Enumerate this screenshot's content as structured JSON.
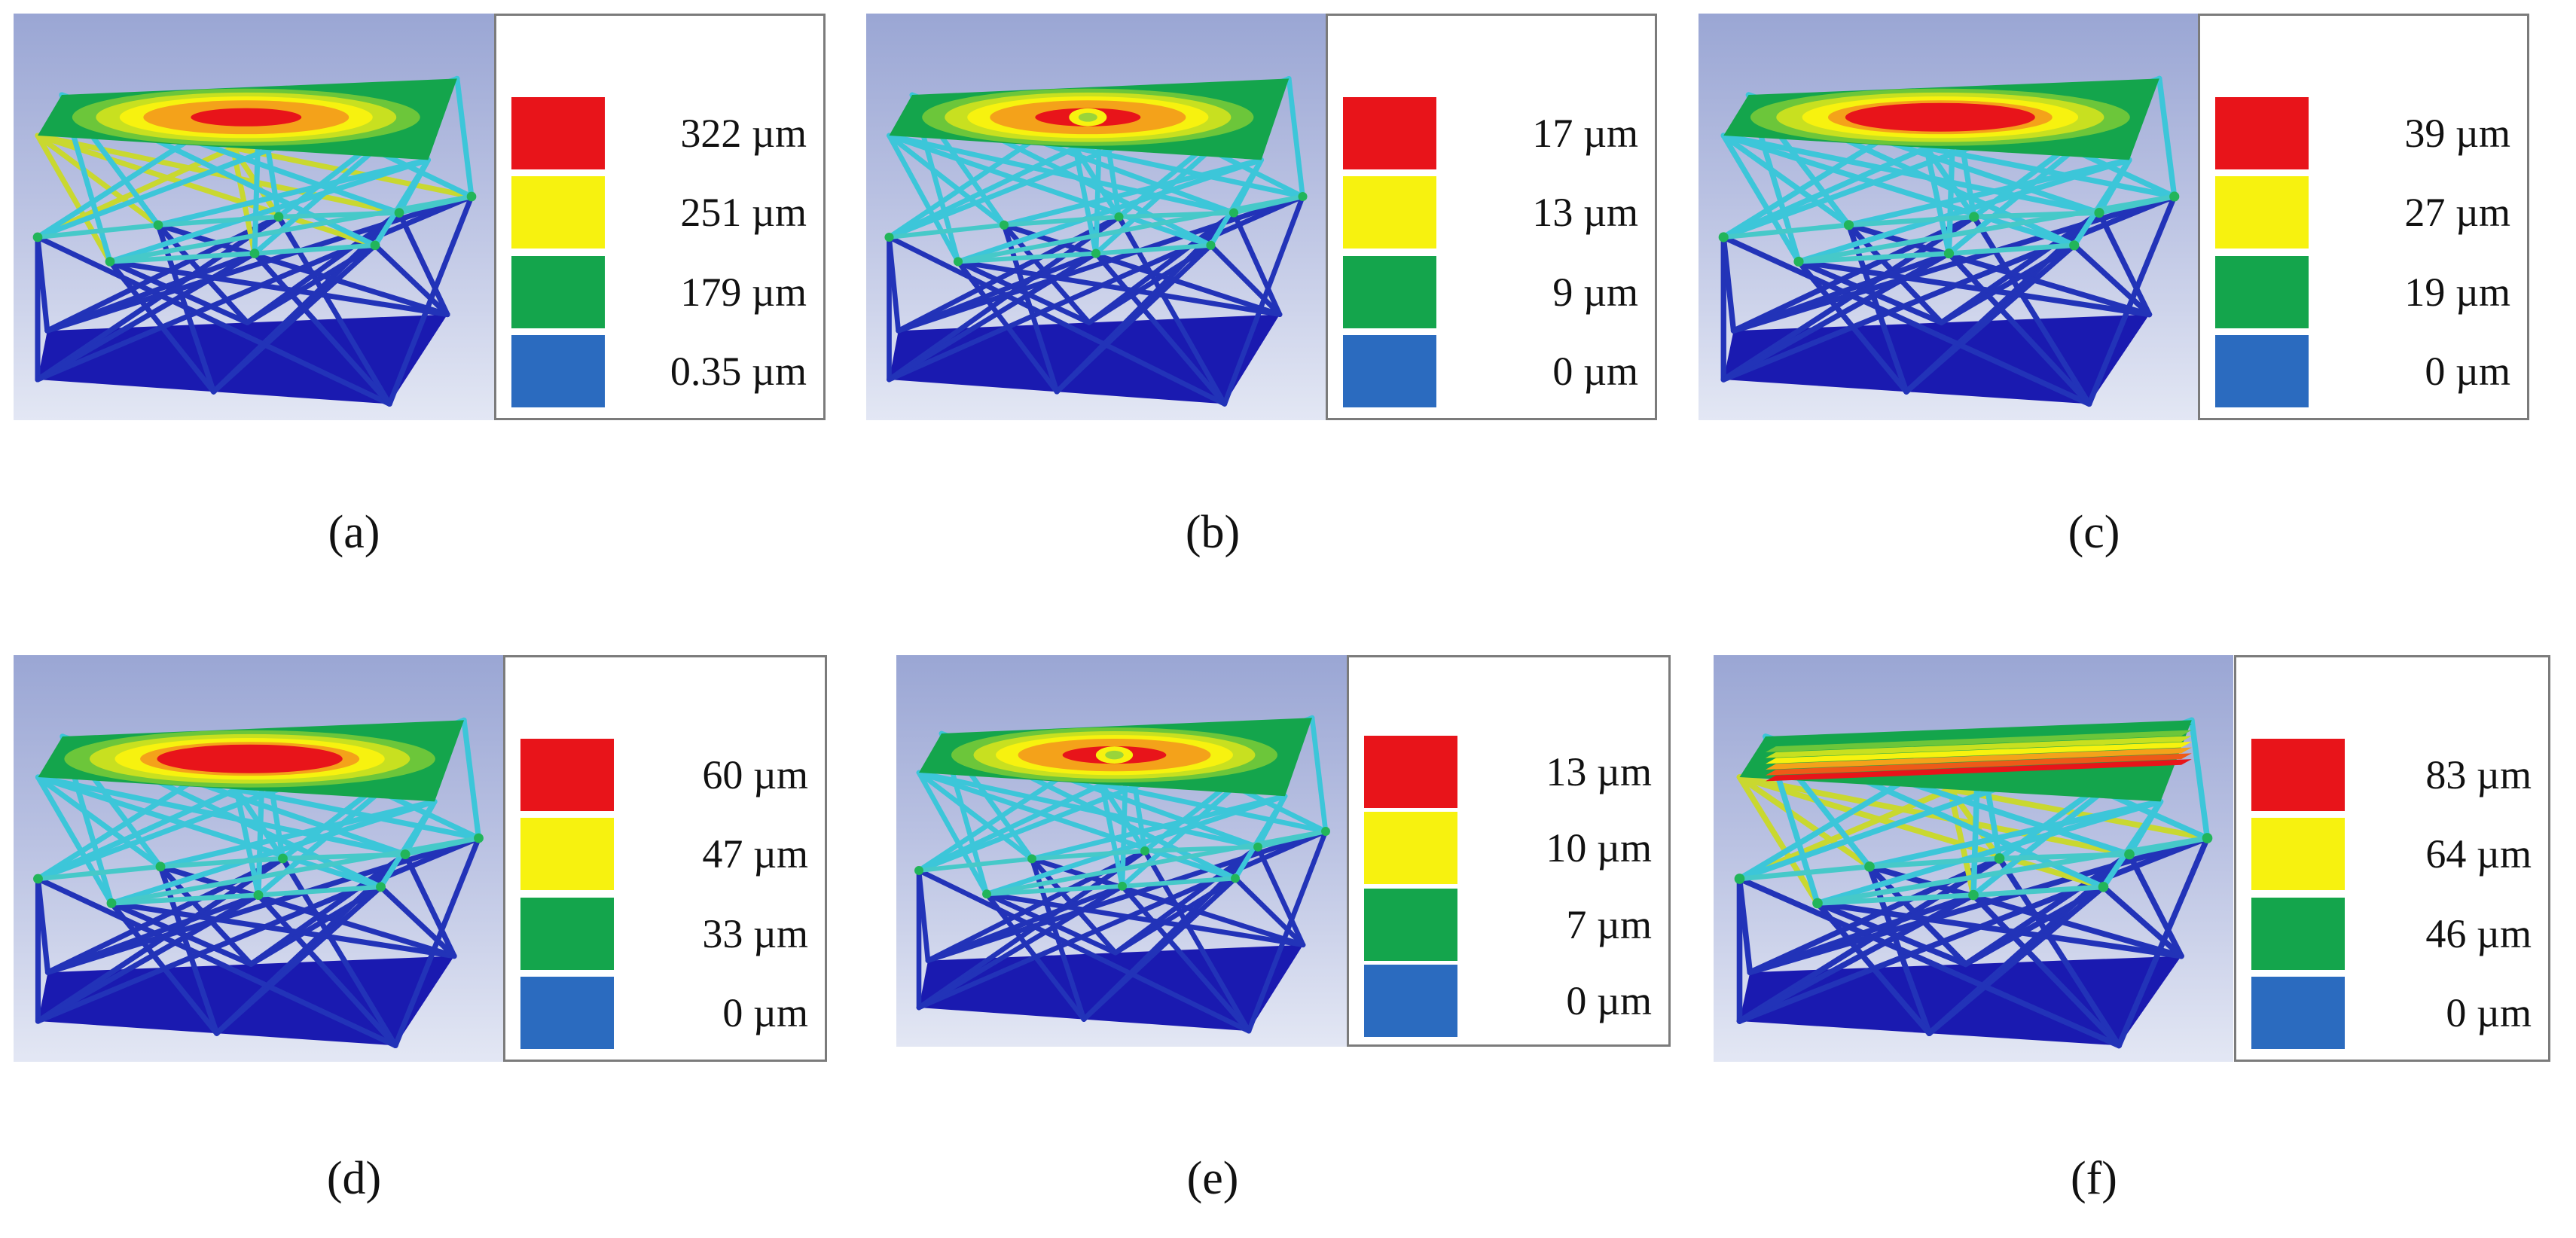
{
  "colors": {
    "red": "#e8141a",
    "yellow": "#f7f20f",
    "green": "#14a54c",
    "blue": "#2b6bbf",
    "base": "#1a1ab0",
    "strut": "#3cc6d9"
  },
  "panels": [
    {
      "caption": "(a)",
      "legend": [
        "322 µm",
        "251 µm",
        "179 µm",
        "0.35 µm"
      ],
      "pattern": "center-spot"
    },
    {
      "caption": "(b)",
      "legend": [
        "17 µm",
        "13 µm",
        "9 µm",
        "0 µm"
      ],
      "pattern": "ring"
    },
    {
      "caption": "(c)",
      "legend": [
        "39 µm",
        "27 µm",
        "19 µm",
        "0 µm"
      ],
      "pattern": "broad"
    },
    {
      "caption": "(d)",
      "legend": [
        "60 µm",
        "47 µm",
        "33 µm",
        "0 µm"
      ],
      "pattern": "broad"
    },
    {
      "caption": "(e)",
      "legend": [
        "13 µm",
        "10 µm",
        "7 µm",
        "0 µm"
      ],
      "pattern": "ring"
    },
    {
      "caption": "(f)",
      "legend": [
        "83 µm",
        "64 µm",
        "46 µm",
        "0 µm"
      ],
      "pattern": "band"
    }
  ]
}
